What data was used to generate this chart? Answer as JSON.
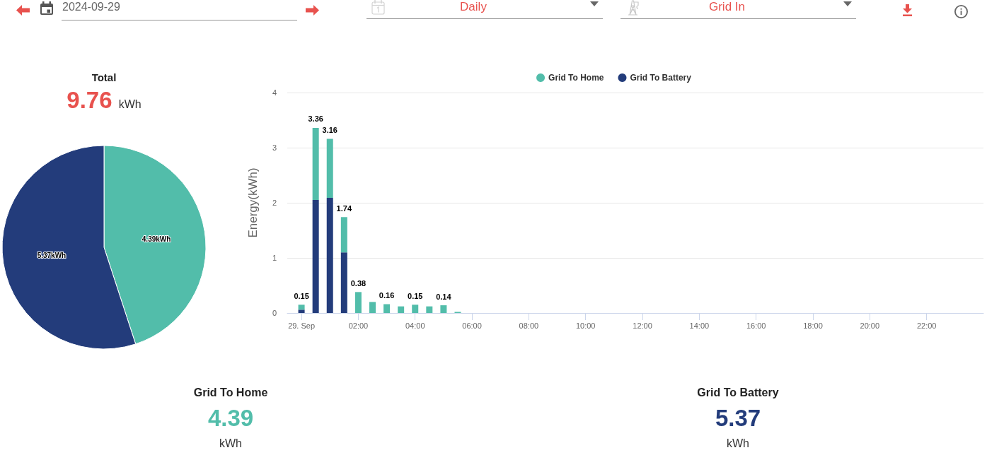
{
  "chart_data": [
    {
      "type": "other",
      "annotations": [
        "2024-09-29",
        "Daily",
        "Grid In"
      ]
    },
    {
      "type": "pie",
      "title": "Total",
      "subtitle": "9.76 kWh",
      "categories": [
        null,
        null
      ],
      "values": [
        4.39,
        5.37
      ],
      "colors": [
        "#52bdaa",
        "#233c7b"
      ],
      "value_labels": [
        "4.39kWh",
        "5.37kWh"
      ]
    },
    {
      "type": "bar",
      "ylabel": "Energy(kWh)",
      "x": [
        0,
        0.5,
        1,
        1.5,
        2,
        2.5,
        3,
        3.5,
        4,
        4.5,
        5,
        5.5
      ],
      "xlim": [
        -0.5,
        24
      ],
      "xticks": [
        {
          "value": 0,
          "label": "29. Sep"
        },
        {
          "value": 2,
          "label": "02:00"
        },
        {
          "value": 4,
          "label": "04:00"
        },
        {
          "value": 6,
          "label": "06:00"
        },
        {
          "value": 8,
          "label": "08:00"
        },
        {
          "value": 10,
          "label": "10:00"
        },
        {
          "value": 12,
          "label": "12:00"
        },
        {
          "value": 14,
          "label": "14:00"
        },
        {
          "value": 16,
          "label": "16:00"
        },
        {
          "value": 18,
          "label": "18:00"
        },
        {
          "value": 20,
          "label": "20:00"
        },
        {
          "value": 22,
          "label": "22:00"
        }
      ],
      "ylim": [
        0,
        4
      ],
      "yticks": [
        0,
        1,
        2,
        3,
        4
      ],
      "stacked": true,
      "series": [
        {
          "name": "Grid To Battery",
          "color": "#233c7b",
          "values": [
            0.06,
            2.05,
            2.09,
            1.1,
            null,
            null,
            null,
            null,
            null,
            null,
            null,
            null
          ]
        },
        {
          "name": "Grid To Home",
          "color": "#52bdaa",
          "values": [
            0.09,
            1.31,
            1.07,
            0.64,
            0.38,
            0.2,
            0.16,
            0.12,
            0.15,
            0.12,
            0.14,
            0.02
          ]
        }
      ],
      "totals": [
        "0.15",
        "3.36",
        "3.16",
        "1.74",
        "0.38",
        null,
        "0.16",
        null,
        "0.15",
        null,
        "0.14",
        null
      ],
      "grid": "y",
      "legend": "top"
    },
    {
      "type": "other",
      "categories": [
        "Grid To Home",
        "Grid To Battery"
      ],
      "values": [
        4.39,
        5.37
      ],
      "colors": [
        "#52bdaa",
        "#233c7b"
      ],
      "data_labels": true,
      "annotations": [
        "kWh",
        "kWh"
      ]
    }
  ]
}
